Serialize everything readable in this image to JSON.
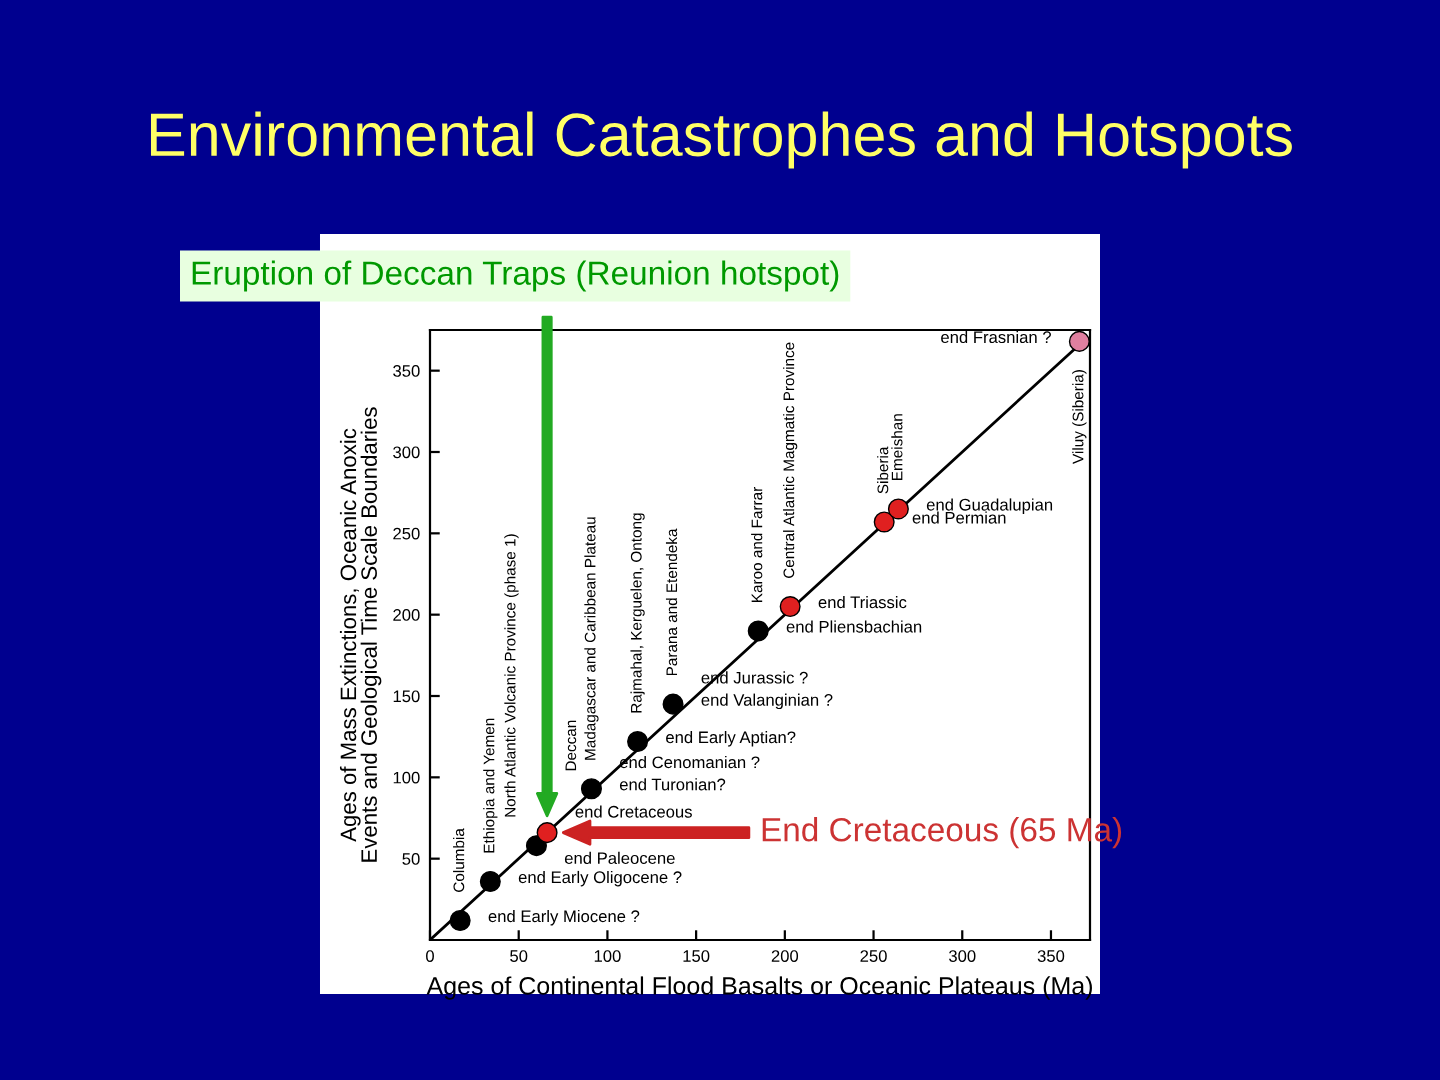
{
  "chart_data": {
    "type": "scatter",
    "title": "Environmental Catastrophes and Hotspots",
    "xlabel": "Ages of Continental Flood Basalts or Oceanic Plateaus (Ma)",
    "ylabel": "Ages of Mass Extinctions, Oceanic Anoxic Events and Geological Time Scale Boundaries",
    "x": [
      17,
      34,
      60,
      66,
      91,
      117,
      137,
      185,
      203,
      256,
      264,
      366
    ],
    "series": [
      {
        "type": "line",
        "x": [
          0,
          370
        ],
        "values": [
          0,
          370
        ],
        "color": "#000000",
        "marker": "none"
      },
      {
        "values": [
          12,
          36,
          58,
          66,
          93,
          122,
          145,
          190,
          205,
          257,
          265,
          368
        ],
        "colors": [
          "#000000",
          "#000000",
          "#000000",
          "#e02020",
          "#000000",
          "#000000",
          "#000000",
          "#000000",
          "#e02020",
          "#e02020",
          "#e02020",
          "#e080a0"
        ]
      }
    ],
    "marker": "circle",
    "grid": false,
    "xlim": [
      0,
      372
    ],
    "ylim": [
      0,
      375
    ],
    "xticks": [
      0,
      50,
      100,
      150,
      200,
      250,
      300,
      350
    ],
    "yticks": [
      50,
      100,
      150,
      200,
      250,
      300,
      350
    ],
    "annotations": [
      "Eruption of Deccan Traps (Reunion hotspot)",
      "End Cretaceous (65 Ma)",
      "Columbia",
      "Ethiopia and Yemen",
      "North Atlantic Volcanic Province (phase 1)",
      "Deccan",
      "Madagascar and Caribbean Plateau",
      "Rajmahal, Kerguelen, Ontong",
      "Parana and Etendeka",
      "Karoo and Farrar",
      "Central Atlantic Magmatic Province",
      "Siberia",
      "Emeishan",
      "Viluy (Siberia)",
      {
        "text": "end Early Miocene ?",
        "x": 17,
        "y": 12
      },
      {
        "text": "end Early Oligocene ?",
        "x": 34,
        "y": 36
      },
      {
        "text": "end Paleocene",
        "x": 60,
        "y": 58
      },
      {
        "text": "end Cretaceous",
        "x": 66,
        "y": 66
      },
      {
        "text": "end Turonian?",
        "x": 91,
        "y": 93
      },
      {
        "text": "end Cenomanian ?",
        "x": 91,
        "y": 93
      },
      {
        "text": "end Early Aptian?",
        "x": 117,
        "y": 122
      },
      {
        "text": "end Valanginian ?",
        "x": 137,
        "y": 145
      },
      {
        "text": "end Jurassic ?",
        "x": 137,
        "y": 145
      },
      {
        "text": "end Pliensbachian",
        "x": 185,
        "y": 190
      },
      {
        "text": "end Triassic",
        "x": 203,
        "y": 205
      },
      {
        "text": "end Permian",
        "x": 256,
        "y": 257
      },
      {
        "text": "end Guadalupian",
        "x": 264,
        "y": 265
      },
      {
        "text": "end Frasnian ?",
        "x": 366,
        "y": 368
      }
    ]
  }
}
